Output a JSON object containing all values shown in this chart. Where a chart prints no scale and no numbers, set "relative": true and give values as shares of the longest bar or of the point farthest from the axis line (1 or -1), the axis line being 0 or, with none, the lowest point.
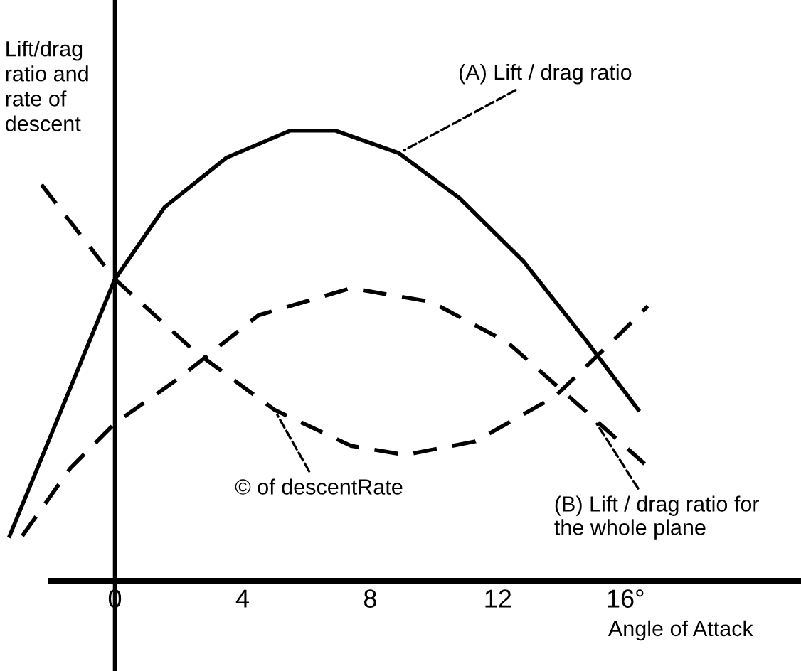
{
  "chart_data": {
    "type": "line",
    "relative": true,
    "xlabel": "Angle of Attack",
    "ylabel": "Lift/drag\nratio and\nrate of\ndescent",
    "xlim": [
      -3.6,
      21.5
    ],
    "xticks": [
      0,
      4,
      8,
      12,
      {
        "value": 16,
        "label": "16°"
      }
    ],
    "legend": false,
    "marker": "none",
    "series": [
      {
        "color": "#000000",
        "line_style": "solid",
        "x": [
          -3.3,
          -1.85,
          0,
          1.56,
          3.5,
          5.5,
          6.9,
          8.9,
          10.8,
          12.8,
          14.7,
          16.4
        ],
        "values": [
          0.1,
          0.35,
          0.67,
          0.83,
          0.94,
          1,
          1,
          0.95,
          0.85,
          0.71,
          0.54,
          0.38
        ]
      },
      {
        "color": "#000000",
        "line_style": "dashed",
        "x": [
          -2.9,
          -1.4,
          0,
          2.0,
          4.5,
          7.4,
          9.9,
          12.3,
          14.7,
          16.6
        ],
        "values": [
          0.1,
          0.25,
          0.35,
          0.45,
          0.59,
          0.65,
          0.62,
          0.53,
          0.38,
          0.26
        ]
      },
      {
        "color": "#000000",
        "line_style": "dashed",
        "x": [
          -2.3,
          0,
          2.5,
          5.0,
          7.4,
          9.1,
          11.3,
          13.8,
          15.7,
          16.7
        ],
        "values": [
          0.88,
          0.67,
          0.51,
          0.38,
          0.3,
          0.28,
          0.31,
          0.41,
          0.54,
          0.61
        ]
      }
    ],
    "annotations": [
      {
        "text": "(A) Lift / drag ratio",
        "x": 8.9,
        "y": 0.95
      },
      {
        "text": "© of descentRate",
        "x": 5.0,
        "y": 0.38
      },
      {
        "text": "(B) Lift / drag ratio for\nthe whole plane",
        "x": 15.0,
        "y": 0.36
      }
    ]
  }
}
